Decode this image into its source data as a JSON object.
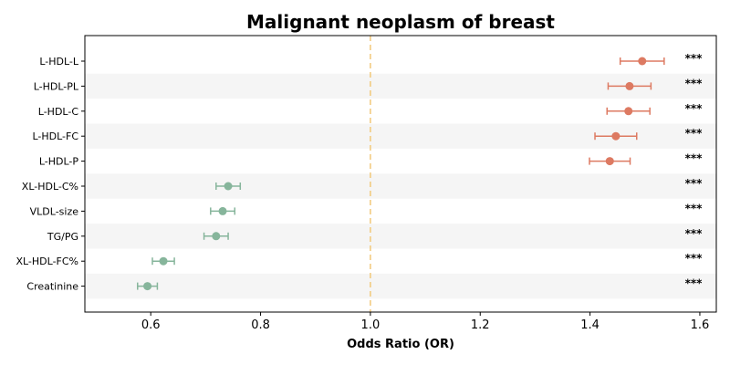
{
  "chart_data": {
    "type": "scatter",
    "title": "Malignant neoplasm of breast",
    "xlabel": "Odds Ratio (OR)",
    "ylabel": "",
    "xlim": [
      0.48,
      1.63
    ],
    "xticks": [
      "0.6",
      "0.8",
      "1.0",
      "1.2",
      "1.4",
      "1.6"
    ],
    "reference_line": 1.0,
    "reference_color": "#f2c879",
    "grid": false,
    "stripe_color": "#f5f5f5",
    "colors": {
      "positive": "#dd7a62",
      "negative": "#86b59b"
    },
    "categories": [
      "L-HDL-L",
      "L-HDL-PL",
      "L-HDL-C",
      "L-HDL-FC",
      "L-HDL-P",
      "XL-HDL-C%",
      "VLDL-size",
      "TG/PG",
      "XL-HDL-FC%",
      "Creatinine"
    ],
    "points": [
      {
        "label": "L-HDL-L",
        "or": 1.495,
        "lower": 1.455,
        "upper": 1.535,
        "direction": "positive",
        "significance": "***"
      },
      {
        "label": "L-HDL-PL",
        "or": 1.472,
        "lower": 1.433,
        "upper": 1.511,
        "direction": "positive",
        "significance": "***"
      },
      {
        "label": "L-HDL-C",
        "or": 1.47,
        "lower": 1.431,
        "upper": 1.509,
        "direction": "positive",
        "significance": "***"
      },
      {
        "label": "L-HDL-FC",
        "or": 1.447,
        "lower": 1.409,
        "upper": 1.485,
        "direction": "positive",
        "significance": "***"
      },
      {
        "label": "L-HDL-P",
        "or": 1.436,
        "lower": 1.399,
        "upper": 1.473,
        "direction": "positive",
        "significance": "***"
      },
      {
        "label": "XL-HDL-C%",
        "or": 0.741,
        "lower": 0.719,
        "upper": 0.763,
        "direction": "negative",
        "significance": "***"
      },
      {
        "label": "VLDL-size",
        "or": 0.731,
        "lower": 0.709,
        "upper": 0.753,
        "direction": "negative",
        "significance": "***"
      },
      {
        "label": "TG/PG",
        "or": 0.719,
        "lower": 0.697,
        "upper": 0.741,
        "direction": "negative",
        "significance": "***"
      },
      {
        "label": "XL-HDL-FC%",
        "or": 0.623,
        "lower": 0.603,
        "upper": 0.643,
        "direction": "negative",
        "significance": "***"
      },
      {
        "label": "Creatinine",
        "or": 0.594,
        "lower": 0.576,
        "upper": 0.612,
        "direction": "negative",
        "significance": "***"
      }
    ]
  }
}
